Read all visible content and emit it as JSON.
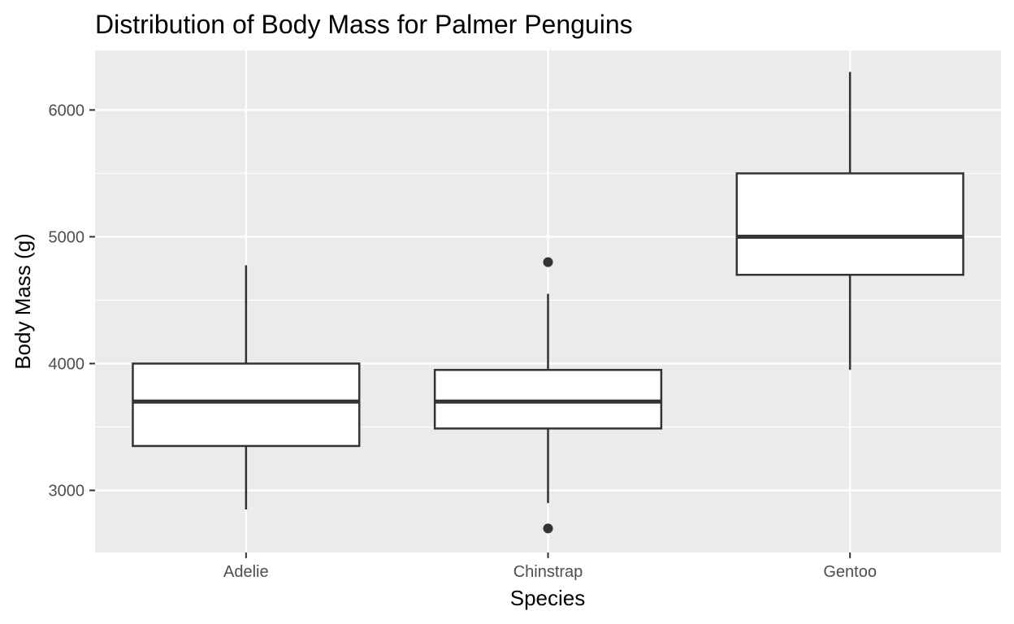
{
  "chart_data": {
    "type": "boxplot",
    "title": "Distribution of Body Mass for Palmer Penguins",
    "xlabel": "Species",
    "ylabel": "Body Mass (g)",
    "categories": [
      "Adelie",
      "Chinstrap",
      "Gentoo"
    ],
    "ylim": [
      2510,
      6470
    ],
    "yticks": [
      3000,
      4000,
      5000,
      6000
    ],
    "grid": true,
    "colors": {
      "panel": "#ebebeb",
      "grid": "#ffffff",
      "box_fill": "#ffffff",
      "box_line": "#333333",
      "tick_label": "#4d4d4d"
    },
    "boxes": [
      {
        "category": "Adelie",
        "whisker_low": 2850,
        "q1": 3350,
        "median": 3700,
        "q3": 4000,
        "whisker_high": 4775,
        "outliers": []
      },
      {
        "category": "Chinstrap",
        "whisker_low": 2900,
        "q1": 3488,
        "median": 3700,
        "q3": 3950,
        "whisker_high": 4550,
        "outliers": [
          4800,
          2700
        ]
      },
      {
        "category": "Gentoo",
        "whisker_low": 3950,
        "q1": 4700,
        "median": 5000,
        "q3": 5500,
        "whisker_high": 6300,
        "outliers": []
      }
    ]
  }
}
